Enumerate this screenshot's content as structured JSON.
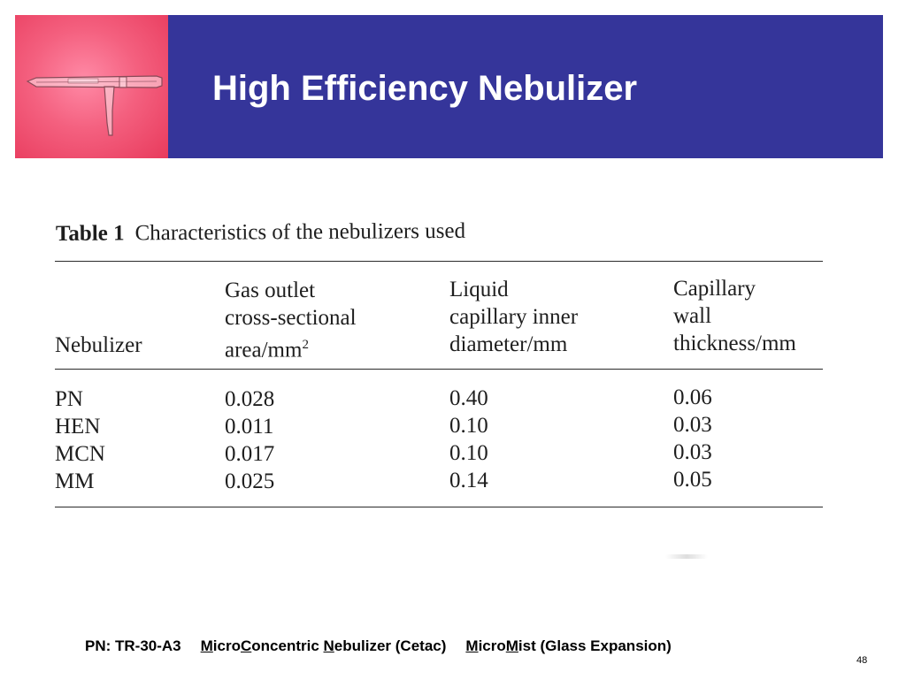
{
  "slide": {
    "title": "High Efficiency Nebulizer",
    "page_number": "48"
  },
  "table": {
    "caption_label": "Table 1",
    "caption_text": "Characteristics of the nebulizers used",
    "headers": {
      "col1": [
        "Nebulizer"
      ],
      "col2": [
        "Gas outlet",
        "cross-sectional",
        "area/mm",
        "2"
      ],
      "col3": [
        "Liquid",
        "capillary inner",
        "diameter/mm"
      ],
      "col4": [
        "Capillary",
        "wall",
        "thickness/mm"
      ]
    },
    "rows": [
      [
        "PN",
        "0.028",
        "0.40",
        "0.06"
      ],
      [
        "HEN",
        "0.011",
        "0.10",
        "0.03"
      ],
      [
        "MCN",
        "0.017",
        "0.10",
        "0.03"
      ],
      [
        "MM",
        "0.025",
        "0.14",
        "0.05"
      ]
    ]
  },
  "footnote": {
    "pn": "PN: TR-30-A3",
    "mcn": {
      "u1": "M",
      "t1": "icro",
      "u2": "C",
      "t2": "oncentric ",
      "u3": "N",
      "t3": "ebulizer (Cetac)"
    },
    "mm": {
      "u1": "M",
      "t1": "icro",
      "u2": "M",
      "t2": "ist (Glass Expansion)"
    }
  }
}
